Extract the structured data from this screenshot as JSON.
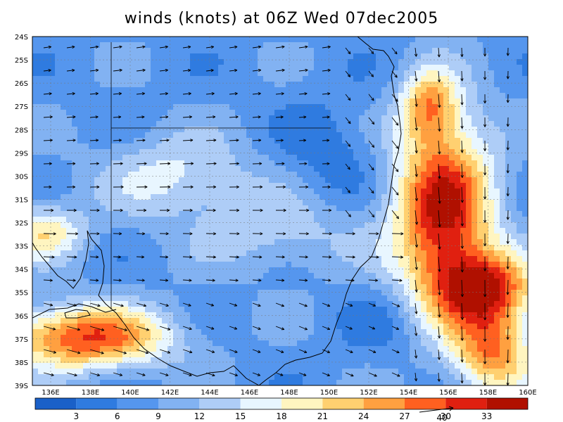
{
  "title": "winds (knots) at 06Z Wed 07dec2005",
  "lat_labels": [
    "24S",
    "25S",
    "26S",
    "27S",
    "28S",
    "29S",
    "30S",
    "31S",
    "32S",
    "33S",
    "34S",
    "35S",
    "36S",
    "37S",
    "38S",
    "39S"
  ],
  "lon_labels": [
    "136E",
    "138E",
    "140E",
    "142E",
    "144E",
    "146E",
    "148E",
    "150E",
    "152E",
    "154E",
    "156E",
    "158E",
    "160E"
  ],
  "colorbar": {
    "labels": [
      "3",
      "6",
      "9",
      "12",
      "15",
      "18",
      "21",
      "24",
      "27",
      "30",
      "33"
    ],
    "colors": [
      "#1a60c8",
      "#2f7be0",
      "#5596ee",
      "#82b2f2",
      "#aecdf7",
      "#e8f6ff",
      "#fff5c0",
      "#ffd070",
      "#ffa040",
      "#ff6020",
      "#e02010",
      "#b01000"
    ],
    "ref_vector_label": "40"
  },
  "palette": {
    "land_line": "#000000",
    "grid": "#777777",
    "arrow": "#000000"
  }
}
